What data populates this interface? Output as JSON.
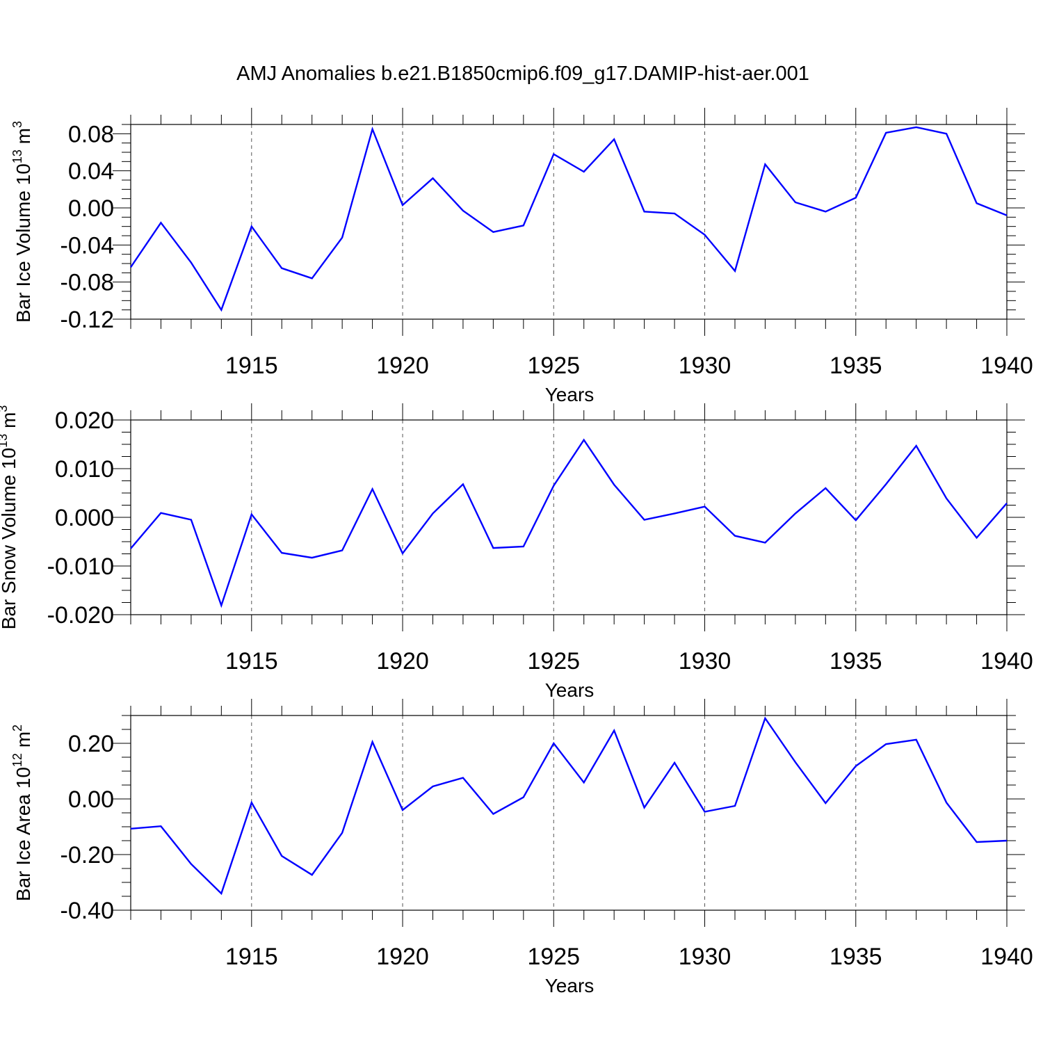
{
  "title": "AMJ Anomalies b.e21.B1850cmip6.f09_g17.DAMIP-hist-aer.001",
  "line_color": "#0000ff",
  "chart_data": [
    {
      "type": "line",
      "ylabel": "Bar Ice Volume 10",
      "ylabel_exp": "13",
      "ylabel_unit": " m",
      "ylabel_unit_exp": "3",
      "xlabel": "Years",
      "xlim": [
        1911,
        1940
      ],
      "ylim": [
        -0.12,
        0.09
      ],
      "x_ticks": [
        "1915",
        "1920",
        "1925",
        "1930",
        "1935",
        "1940"
      ],
      "y_ticks": [
        "-0.12",
        "-0.08",
        "-0.04",
        "0.00",
        "0.04",
        "0.08"
      ],
      "x": [
        1911,
        1912,
        1913,
        1914,
        1915,
        1916,
        1917,
        1918,
        1919,
        1920,
        1921,
        1922,
        1923,
        1924,
        1925,
        1926,
        1927,
        1928,
        1929,
        1930,
        1931,
        1932,
        1933,
        1934,
        1935,
        1936,
        1937,
        1938,
        1939,
        1940
      ],
      "values": [
        -0.064,
        -0.016,
        -0.059,
        -0.11,
        -0.02,
        -0.065,
        -0.076,
        -0.032,
        0.085,
        0.003,
        0.032,
        -0.003,
        -0.026,
        -0.019,
        0.058,
        0.039,
        0.074,
        -0.004,
        -0.006,
        -0.029,
        -0.068,
        0.047,
        0.006,
        -0.004,
        0.011,
        0.081,
        0.087,
        0.08,
        0.005,
        -0.008
      ]
    },
    {
      "type": "line",
      "ylabel": "Bar Snow Volume 10",
      "ylabel_exp": "13",
      "ylabel_unit": " m",
      "ylabel_unit_exp": "3",
      "xlabel": "Years",
      "xlim": [
        1911,
        1940
      ],
      "ylim": [
        -0.02,
        0.02
      ],
      "x_ticks": [
        "1915",
        "1920",
        "1925",
        "1930",
        "1935",
        "1940"
      ],
      "y_ticks": [
        "-0.020",
        "-0.010",
        "0.000",
        "0.010",
        "0.020"
      ],
      "x": [
        1911,
        1912,
        1913,
        1914,
        1915,
        1916,
        1917,
        1918,
        1919,
        1920,
        1921,
        1922,
        1923,
        1924,
        1925,
        1926,
        1927,
        1928,
        1929,
        1930,
        1931,
        1932,
        1933,
        1934,
        1935,
        1936,
        1937,
        1938,
        1939,
        1940
      ],
      "values": [
        -0.0064,
        0.0009,
        -0.0005,
        -0.0181,
        0.0006,
        -0.0073,
        -0.0083,
        -0.0068,
        0.0058,
        -0.0074,
        0.0008,
        0.0068,
        -0.0063,
        -0.006,
        0.0065,
        0.0159,
        0.0067,
        -0.0005,
        0.0008,
        0.0022,
        -0.0038,
        -0.0052,
        0.0008,
        0.006,
        -0.0006,
        0.0068,
        0.0147,
        0.0039,
        -0.0042,
        0.0029
      ]
    },
    {
      "type": "line",
      "ylabel": "Bar Ice Area 10",
      "ylabel_exp": "12",
      "ylabel_unit": " m",
      "ylabel_unit_exp": "2",
      "xlabel": "Years",
      "xlim": [
        1911,
        1940
      ],
      "ylim": [
        -0.4,
        0.3
      ],
      "x_ticks": [
        "1915",
        "1920",
        "1925",
        "1930",
        "1935",
        "1940"
      ],
      "y_ticks": [
        "-0.40",
        "-0.20",
        "0.00",
        "0.20"
      ],
      "x": [
        1911,
        1912,
        1913,
        1914,
        1915,
        1916,
        1917,
        1918,
        1919,
        1920,
        1921,
        1922,
        1923,
        1924,
        1925,
        1926,
        1927,
        1928,
        1929,
        1930,
        1931,
        1932,
        1933,
        1934,
        1935,
        1936,
        1937,
        1938,
        1939,
        1940
      ],
      "values": [
        -0.107,
        -0.098,
        -0.234,
        -0.34,
        -0.013,
        -0.205,
        -0.273,
        -0.122,
        0.205,
        -0.04,
        0.045,
        0.076,
        -0.054,
        0.006,
        0.2,
        0.059,
        0.246,
        -0.031,
        0.13,
        -0.046,
        -0.025,
        0.29,
        0.132,
        -0.015,
        0.118,
        0.197,
        0.213,
        -0.013,
        -0.155,
        -0.15
      ]
    }
  ]
}
